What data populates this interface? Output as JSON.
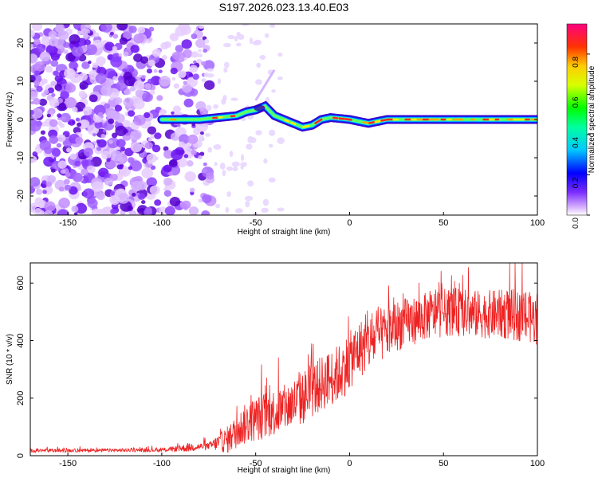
{
  "title": "S197.2026.023.13.40.E03",
  "chart_data": [
    {
      "type": "heatmap",
      "id": "spectrogram",
      "xlabel": "Height of straight line (km)",
      "ylabel": "Frequency (Hz)",
      "xlim": [
        -170,
        100
      ],
      "ylim": [
        -25,
        25
      ],
      "xticks": [
        -150,
        -100,
        -50,
        0,
        50,
        100
      ],
      "yticks": [
        -20,
        -10,
        0,
        10,
        20
      ],
      "colorbar": {
        "label": "Normalized spectral amplitude",
        "range": [
          0,
          0.95
        ],
        "ticks": [
          0.0,
          0.2,
          0.4,
          0.6,
          0.8
        ]
      },
      "ridge": {
        "description_points_km_hz": [
          [
            -100,
            0.0
          ],
          [
            -90,
            0.0
          ],
          [
            -80,
            0.0
          ],
          [
            -70,
            0.5
          ],
          [
            -60,
            1.0
          ],
          [
            -55,
            2.0
          ],
          [
            -50,
            2.5
          ],
          [
            -45,
            3.5
          ],
          [
            -40,
            1.0
          ],
          [
            -35,
            0.0
          ],
          [
            -30,
            -1.0
          ],
          [
            -25,
            -2.0
          ],
          [
            -20,
            -1.5
          ],
          [
            -15,
            0.0
          ],
          [
            -10,
            0.5
          ],
          [
            0,
            0.0
          ],
          [
            10,
            -1.0
          ],
          [
            20,
            0.0
          ],
          [
            30,
            0.0
          ],
          [
            50,
            0.0
          ],
          [
            70,
            0.0
          ],
          [
            90,
            0.0
          ],
          [
            100,
            0.0
          ]
        ],
        "noise_region_km": [
          -170,
          -80
        ]
      }
    },
    {
      "type": "line",
      "id": "snr",
      "xlabel": "Height of straight line (km)",
      "ylabel": "SNR (10 * v/v)",
      "xlim": [
        -170,
        100
      ],
      "ylim": [
        0,
        670
      ],
      "xticks": [
        -150,
        -100,
        -50,
        0,
        50,
        100
      ],
      "yticks": [
        0,
        200,
        400,
        600
      ],
      "series": [
        {
          "name": "SNR",
          "color": "#ee2222",
          "envelope_km_mean_spread": [
            [
              -170,
              18,
              10
            ],
            [
              -100,
              20,
              10
            ],
            [
              -85,
              30,
              25
            ],
            [
              -75,
              35,
              20
            ],
            [
              -65,
              60,
              80
            ],
            [
              -55,
              120,
              120
            ],
            [
              -45,
              150,
              140
            ],
            [
              -35,
              170,
              140
            ],
            [
              -25,
              210,
              160
            ],
            [
              -15,
              260,
              160
            ],
            [
              -5,
              300,
              170
            ],
            [
              5,
              380,
              170
            ],
            [
              15,
              420,
              160
            ],
            [
              25,
              460,
              150
            ],
            [
              35,
              480,
              140
            ],
            [
              45,
              500,
              140
            ],
            [
              55,
              510,
              140
            ],
            [
              65,
              500,
              140
            ],
            [
              75,
              500,
              140
            ],
            [
              85,
              500,
              150
            ],
            [
              95,
              490,
              150
            ],
            [
              100,
              480,
              150
            ]
          ]
        }
      ]
    }
  ]
}
